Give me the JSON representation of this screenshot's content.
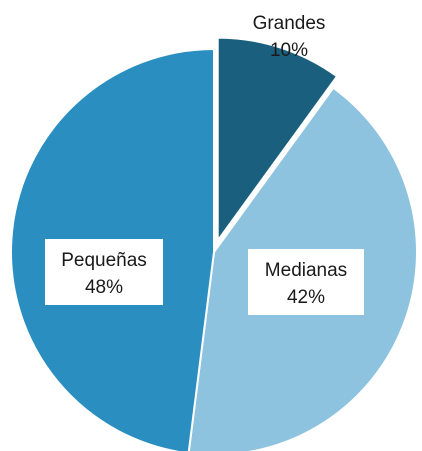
{
  "chart_data": {
    "type": "pie",
    "slices": [
      {
        "label": "Grandes",
        "value": 10,
        "value_label": "10%",
        "color": "#1a5f7e"
      },
      {
        "label": "Medianas",
        "value": 42,
        "value_label": "42%",
        "color": "#8dc3de"
      },
      {
        "label": "Pequeñas",
        "value": 48,
        "value_label": "48%",
        "color": "#2a8fc0"
      }
    ],
    "start": "12 o'clock",
    "direction": "clockwise",
    "separator_color": "#ffffff"
  }
}
